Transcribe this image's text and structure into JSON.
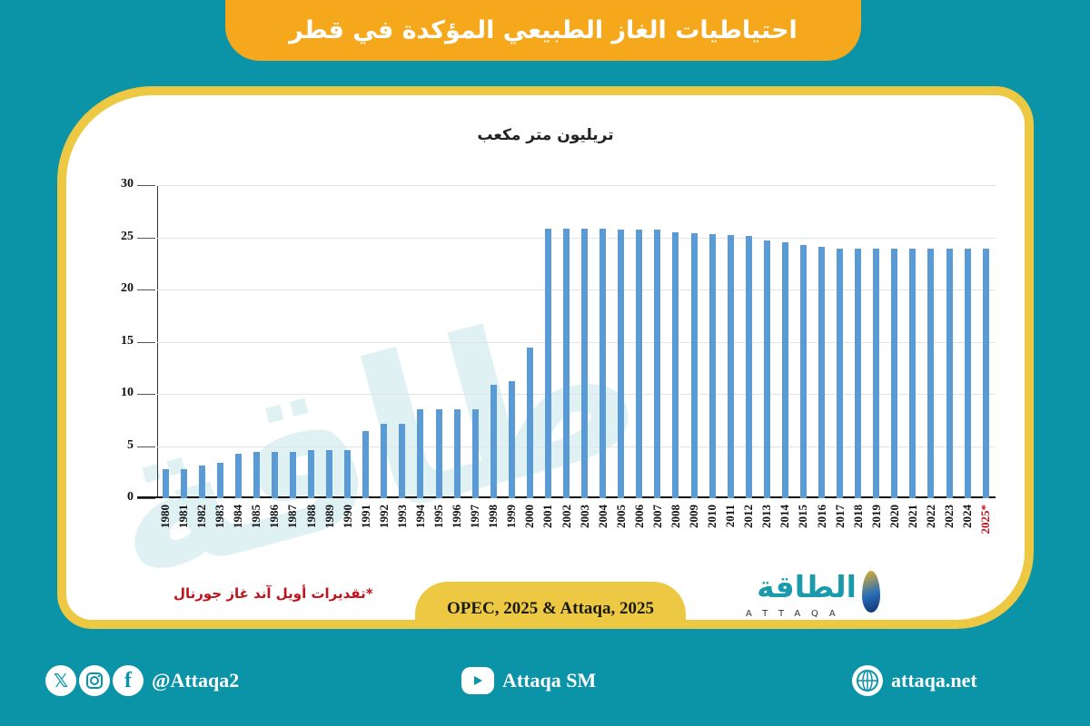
{
  "header": {
    "title": "احتياطيات الغاز الطبيعي المؤكدة في قطر"
  },
  "chart_data": {
    "type": "bar",
    "title": "احتياطيات الغاز الطبيعي المؤكدة في قطر",
    "ylabel": "تريليون متر مكعب",
    "xlabel": "",
    "ylim": [
      0,
      30
    ],
    "yticks": [
      0,
      5,
      10,
      15,
      20,
      25,
      30
    ],
    "grid": true,
    "legend": null,
    "color": "#5b9bd5",
    "categories": [
      "1980",
      "1981",
      "1982",
      "1983",
      "1984",
      "1985",
      "1986",
      "1987",
      "1988",
      "1989",
      "1990",
      "1991",
      "1992",
      "1993",
      "1994",
      "1995",
      "1996",
      "1997",
      "1998",
      "1999",
      "2000",
      "2001",
      "2002",
      "2003",
      "2004",
      "2005",
      "2006",
      "2007",
      "2008",
      "2009",
      "2010",
      "2011",
      "2012",
      "2013",
      "2014",
      "2015",
      "2016",
      "2017",
      "2018",
      "2019",
      "2020",
      "2021",
      "2022",
      "2023",
      "2024",
      "2025*"
    ],
    "values": [
      2.8,
      2.8,
      3.1,
      3.4,
      4.3,
      4.4,
      4.4,
      4.4,
      4.6,
      4.6,
      4.6,
      6.4,
      7.1,
      7.1,
      8.5,
      8.5,
      8.5,
      8.5,
      10.9,
      11.2,
      14.4,
      25.8,
      25.8,
      25.8,
      25.8,
      25.7,
      25.7,
      25.7,
      25.5,
      25.4,
      25.3,
      25.2,
      25.1,
      24.7,
      24.5,
      24.3,
      24.1,
      23.9,
      23.9,
      23.9,
      23.9,
      23.9,
      23.9,
      23.9,
      23.9,
      23.9
    ],
    "annotations": [
      "*تقديرات أويل آند غاز جورنال"
    ],
    "estimate_color": "#c0121b"
  },
  "chart": {
    "unit_label": "تريليون متر مكعب",
    "note": "*تقديرات أويل آند غاز جورنال",
    "source": "OPEC, 2025 & Attaqa, 2025"
  },
  "brand": {
    "name_ar": "الطاقة",
    "name_en": "ATTAQA"
  },
  "footer": {
    "social_handle": "@Attaqa2",
    "youtube": "Attaqa SM",
    "website": "attaqa.net",
    "icons": [
      "x-icon",
      "instagram-icon",
      "facebook-icon",
      "youtube-icon",
      "globe-icon"
    ]
  },
  "colors": {
    "background": "#0b93a8",
    "banner": "#f6a81c",
    "card_border": "#ecc843",
    "bar": "#5b9bd5",
    "estimate": "#c0121b"
  }
}
